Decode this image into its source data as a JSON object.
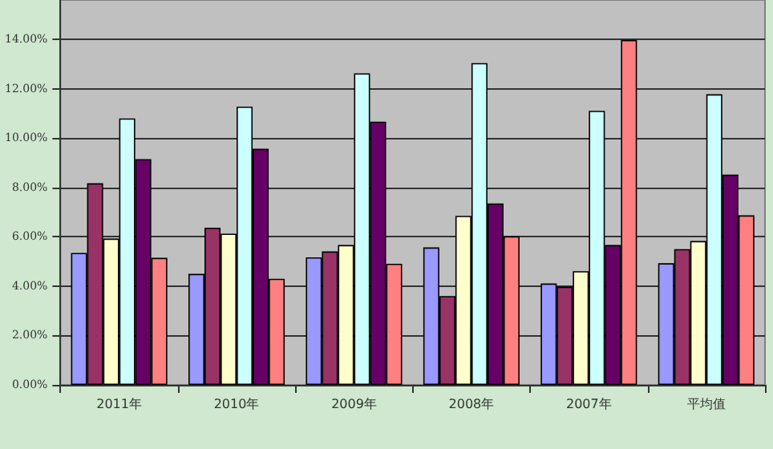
{
  "chart_data": {
    "type": "bar",
    "categories": [
      "2011年",
      "2010年",
      "2009年",
      "2008年",
      "2007年",
      "平均值"
    ],
    "series": [
      {
        "color": "#9999ff",
        "values": [
          5.35,
          4.5,
          5.17,
          5.57,
          4.11,
          4.93
        ]
      },
      {
        "color": "#993366",
        "values": [
          8.17,
          6.37,
          5.41,
          3.6,
          3.98,
          5.5
        ]
      },
      {
        "color": "#ffffcc",
        "values": [
          5.93,
          6.13,
          5.67,
          6.85,
          4.61,
          5.83
        ]
      },
      {
        "color": "#ccffff",
        "values": [
          10.8,
          11.28,
          12.63,
          13.04,
          11.11,
          11.78
        ]
      },
      {
        "color": "#660066",
        "values": [
          9.15,
          9.57,
          10.67,
          7.35,
          5.67,
          8.52
        ]
      },
      {
        "color": "#ff8080",
        "values": [
          5.15,
          4.3,
          4.91,
          6.02,
          13.98,
          6.87
        ]
      }
    ],
    "ylim": [
      0,
      15.6
    ],
    "yticks": [
      {
        "value": 0,
        "label": "0.00%"
      },
      {
        "value": 2,
        "label": "2.00%"
      },
      {
        "value": 4,
        "label": "4.00%"
      },
      {
        "value": 6,
        "label": "6.00%"
      },
      {
        "value": 8,
        "label": "8.00%"
      },
      {
        "value": 10,
        "label": "10.00%"
      },
      {
        "value": 12,
        "label": "12.00%"
      },
      {
        "value": 14,
        "label": "14.00%"
      }
    ],
    "grid": "y"
  }
}
